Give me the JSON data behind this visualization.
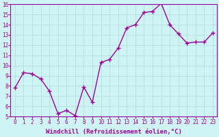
{
  "x": [
    0,
    1,
    2,
    3,
    4,
    5,
    6,
    7,
    8,
    9,
    10,
    11,
    12,
    13,
    14,
    15,
    16,
    17,
    18,
    19,
    20,
    21,
    22,
    23
  ],
  "y": [
    7.8,
    9.3,
    9.2,
    8.7,
    7.5,
    5.3,
    5.6,
    5.1,
    7.9,
    6.4,
    10.3,
    10.6,
    11.7,
    13.7,
    14.0,
    15.2,
    15.3,
    16.1,
    14.0,
    13.1,
    12.2,
    12.3,
    12.3,
    13.2
  ],
  "ylim": [
    5,
    16
  ],
  "xlim": [
    -0.5,
    23.5
  ],
  "yticks": [
    5,
    6,
    7,
    8,
    9,
    10,
    11,
    12,
    13,
    14,
    15,
    16
  ],
  "xticks": [
    0,
    1,
    2,
    3,
    4,
    5,
    6,
    7,
    8,
    9,
    10,
    11,
    12,
    13,
    14,
    15,
    16,
    17,
    18,
    19,
    20,
    21,
    22,
    23
  ],
  "line_color": "#990099",
  "marker": "+",
  "marker_size": 4.0,
  "linewidth": 1.0,
  "xlabel": "Windchill (Refroidissement éolien,°C)",
  "xlabel_fontsize": 6.5,
  "tick_fontsize": 5.5,
  "background_color": "#cff4f4",
  "grid_color": "#aadddd",
  "title": ""
}
